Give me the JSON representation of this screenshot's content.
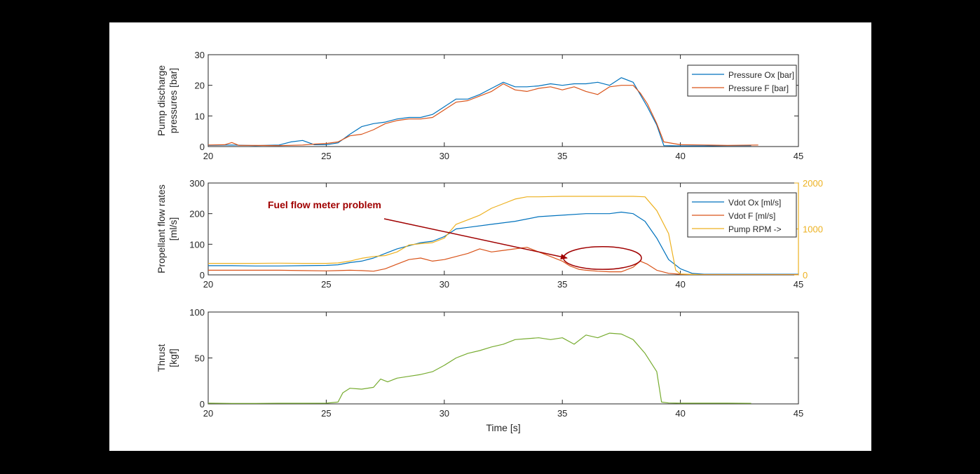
{
  "colors": {
    "page_bg": "#000000",
    "figure_bg": "#ffffff",
    "axis": "#262626",
    "ox": "#0072bd",
    "fuel": "#d95319",
    "rpm": "#edb120",
    "thrust": "#77ac30",
    "annotation": "#a00000"
  },
  "chart_data": [
    {
      "type": "line",
      "ylabel": [
        "Pump discharge",
        "pressures [bar]"
      ],
      "xlabel": "",
      "xlim": [
        20,
        45
      ],
      "ylim": [
        0,
        30
      ],
      "xticks": [
        "20",
        "25",
        "30",
        "35",
        "40",
        "45"
      ],
      "yticks": [
        "0",
        "10",
        "20",
        "30"
      ],
      "legend_position": "top-right",
      "series": [
        {
          "name": "Pressure Ox [bar]",
          "color_key": "ox",
          "points": [
            [
              20,
              0.4
            ],
            [
              21,
              0.5
            ],
            [
              22,
              0.3
            ],
            [
              23,
              0.5
            ],
            [
              23.5,
              1.5
            ],
            [
              24,
              2.0
            ],
            [
              24.5,
              0.6
            ],
            [
              25,
              0.6
            ],
            [
              25.5,
              1.2
            ],
            [
              26,
              4.0
            ],
            [
              26.5,
              6.5
            ],
            [
              27,
              7.5
            ],
            [
              27.5,
              8.0
            ],
            [
              28,
              9.0
            ],
            [
              28.5,
              9.5
            ],
            [
              29,
              9.5
            ],
            [
              29.5,
              10.5
            ],
            [
              30,
              13.0
            ],
            [
              30.5,
              15.5
            ],
            [
              31,
              15.5
            ],
            [
              31.5,
              17.0
            ],
            [
              32,
              19.0
            ],
            [
              32.5,
              21.0
            ],
            [
              33,
              19.5
            ],
            [
              33.5,
              19.5
            ],
            [
              34,
              19.8
            ],
            [
              34.5,
              20.5
            ],
            [
              35,
              20.0
            ],
            [
              35.5,
              20.5
            ],
            [
              36,
              20.5
            ],
            [
              36.5,
              21.0
            ],
            [
              37,
              20.0
            ],
            [
              37.5,
              22.5
            ],
            [
              38,
              21.0
            ],
            [
              38.3,
              17.0
            ],
            [
              38.6,
              13.0
            ],
            [
              39,
              7.0
            ],
            [
              39.3,
              0.3
            ],
            [
              40,
              0.2
            ],
            [
              41,
              0.2
            ],
            [
              42,
              0.3
            ],
            [
              43,
              0.3
            ]
          ]
        },
        {
          "name": "Pressure F [bar]",
          "color_key": "fuel",
          "points": [
            [
              20,
              0.5
            ],
            [
              20.7,
              0.6
            ],
            [
              21,
              1.3
            ],
            [
              21.3,
              0.4
            ],
            [
              22,
              0.4
            ],
            [
              23,
              0.3
            ],
            [
              24,
              0.5
            ],
            [
              24.5,
              0.8
            ],
            [
              25,
              1.0
            ],
            [
              25.5,
              1.5
            ],
            [
              26,
              3.5
            ],
            [
              26.5,
              4.0
            ],
            [
              27,
              5.5
            ],
            [
              27.5,
              7.5
            ],
            [
              28,
              8.5
            ],
            [
              28.5,
              9.0
            ],
            [
              29,
              9.0
            ],
            [
              29.5,
              9.5
            ],
            [
              30,
              12.0
            ],
            [
              30.5,
              14.5
            ],
            [
              31,
              15.0
            ],
            [
              31.5,
              16.5
            ],
            [
              32,
              18.0
            ],
            [
              32.5,
              20.5
            ],
            [
              33,
              18.5
            ],
            [
              33.5,
              18.0
            ],
            [
              34,
              19.0
            ],
            [
              34.5,
              19.5
            ],
            [
              35,
              18.5
            ],
            [
              35.5,
              19.5
            ],
            [
              36,
              18.0
            ],
            [
              36.5,
              17.0
            ],
            [
              37,
              19.5
            ],
            [
              37.5,
              20.0
            ],
            [
              38,
              20.0
            ],
            [
              38.3,
              17.5
            ],
            [
              38.6,
              14.0
            ],
            [
              39,
              7.5
            ],
            [
              39.3,
              1.5
            ],
            [
              40,
              0.6
            ],
            [
              41,
              0.5
            ],
            [
              42,
              0.4
            ],
            [
              43.3,
              0.5
            ]
          ]
        }
      ]
    },
    {
      "type": "line",
      "ylabel": [
        "Propellant flow rates",
        "[ml/s]"
      ],
      "xlabel": "",
      "xlim": [
        20,
        45
      ],
      "ylim": [
        0,
        300
      ],
      "ylim_right": [
        0,
        2000
      ],
      "xticks": [
        "20",
        "25",
        "30",
        "35",
        "40",
        "45"
      ],
      "yticks": [
        "0",
        "100",
        "200",
        "300"
      ],
      "yticks_right": [
        "0",
        "1000",
        "2000"
      ],
      "legend_position": "top-right",
      "annotations": [
        {
          "text": "Fuel flow meter problem",
          "arrow_from": [
            27.5,
            180
          ],
          "arrow_to": [
            35.2,
            55
          ],
          "ellipse_center": [
            36.7,
            55
          ],
          "ellipse_radii": [
            1.65,
            70
          ]
        }
      ],
      "series": [
        {
          "name": "Vdot Ox [ml/s]",
          "color_key": "ox",
          "axis": "left",
          "points": [
            [
              20,
              30
            ],
            [
              21,
              30
            ],
            [
              22,
              29
            ],
            [
              23,
              29
            ],
            [
              24,
              30
            ],
            [
              25,
              31
            ],
            [
              25.5,
              33
            ],
            [
              26,
              40
            ],
            [
              26.5,
              45
            ],
            [
              27,
              55
            ],
            [
              27.5,
              70
            ],
            [
              28,
              85
            ],
            [
              28.5,
              95
            ],
            [
              29,
              105
            ],
            [
              29.5,
              110
            ],
            [
              30,
              125
            ],
            [
              30.5,
              150
            ],
            [
              31,
              155
            ],
            [
              32,
              165
            ],
            [
              33,
              175
            ],
            [
              34,
              190
            ],
            [
              35,
              195
            ],
            [
              36,
              200
            ],
            [
              37,
              200
            ],
            [
              37.5,
              205
            ],
            [
              38,
              200
            ],
            [
              38.5,
              175
            ],
            [
              39,
              120
            ],
            [
              39.5,
              50
            ],
            [
              40,
              20
            ],
            [
              40.5,
              5
            ],
            [
              41,
              2
            ],
            [
              42,
              2
            ],
            [
              43,
              2
            ],
            [
              44,
              2
            ],
            [
              45,
              2
            ]
          ]
        },
        {
          "name": "Vdot F [ml/s]",
          "color_key": "fuel",
          "axis": "left",
          "points": [
            [
              20,
              15
            ],
            [
              21,
              15
            ],
            [
              22,
              15
            ],
            [
              23,
              15
            ],
            [
              24,
              14
            ],
            [
              25,
              13
            ],
            [
              25.5,
              14
            ],
            [
              26,
              15
            ],
            [
              26.5,
              14
            ],
            [
              27,
              12
            ],
            [
              27.5,
              20
            ],
            [
              28,
              35
            ],
            [
              28.5,
              50
            ],
            [
              29,
              55
            ],
            [
              29.5,
              45
            ],
            [
              30,
              50
            ],
            [
              30.5,
              60
            ],
            [
              31,
              70
            ],
            [
              31.5,
              85
            ],
            [
              32,
              75
            ],
            [
              32.5,
              80
            ],
            [
              33,
              85
            ],
            [
              33.5,
              90
            ],
            [
              34,
              75
            ],
            [
              34.5,
              60
            ],
            [
              35,
              45
            ],
            [
              35.3,
              30
            ],
            [
              35.7,
              18
            ],
            [
              36,
              15
            ],
            [
              36.5,
              12
            ],
            [
              37,
              10
            ],
            [
              37.5,
              10
            ],
            [
              38,
              25
            ],
            [
              38.3,
              45
            ],
            [
              38.6,
              35
            ],
            [
              39,
              15
            ],
            [
              39.5,
              5
            ],
            [
              40,
              2
            ],
            [
              41,
              1
            ],
            [
              42,
              1
            ],
            [
              43,
              1
            ],
            [
              44,
              1
            ],
            [
              45,
              1
            ]
          ]
        },
        {
          "name": "Pump RPM ->",
          "color_key": "rpm",
          "axis": "right",
          "points": [
            [
              20,
              250
            ],
            [
              21,
              250
            ],
            [
              22,
              250
            ],
            [
              23,
              255
            ],
            [
              24,
              250
            ],
            [
              25,
              250
            ],
            [
              25.5,
              260
            ],
            [
              26,
              300
            ],
            [
              26.5,
              360
            ],
            [
              27,
              400
            ],
            [
              27.5,
              420
            ],
            [
              28,
              500
            ],
            [
              28.5,
              650
            ],
            [
              29,
              680
            ],
            [
              29.5,
              700
            ],
            [
              30,
              800
            ],
            [
              30.5,
              1100
            ],
            [
              31,
              1200
            ],
            [
              31.5,
              1300
            ],
            [
              32,
              1450
            ],
            [
              32.5,
              1550
            ],
            [
              33,
              1650
            ],
            [
              33.5,
              1700
            ],
            [
              34,
              1700
            ],
            [
              35,
              1710
            ],
            [
              36,
              1710
            ],
            [
              37,
              1710
            ],
            [
              38,
              1710
            ],
            [
              38.5,
              1700
            ],
            [
              39,
              1400
            ],
            [
              39.5,
              900
            ],
            [
              39.8,
              100
            ],
            [
              40,
              20
            ],
            [
              41,
              0
            ],
            [
              42,
              0
            ],
            [
              43,
              0
            ],
            [
              44,
              0
            ],
            [
              45,
              0
            ]
          ]
        }
      ]
    },
    {
      "type": "line",
      "ylabel": [
        "Thrust",
        "[kgf]"
      ],
      "xlabel": "Time [s]",
      "xlim": [
        20,
        45
      ],
      "ylim": [
        0,
        100
      ],
      "xticks": [
        "20",
        "25",
        "30",
        "35",
        "40",
        "45"
      ],
      "yticks": [
        "0",
        "50",
        "100"
      ],
      "series": [
        {
          "name": "",
          "color_key": "thrust",
          "points": [
            [
              20,
              0.8
            ],
            [
              21,
              0.5
            ],
            [
              22,
              0.5
            ],
            [
              23,
              0.7
            ],
            [
              24,
              0.7
            ],
            [
              25,
              0.8
            ],
            [
              25.5,
              2.0
            ],
            [
              25.7,
              12
            ],
            [
              26,
              17
            ],
            [
              26.5,
              16
            ],
            [
              27,
              18
            ],
            [
              27.3,
              27
            ],
            [
              27.6,
              24
            ],
            [
              28,
              28
            ],
            [
              28.5,
              30
            ],
            [
              29,
              32
            ],
            [
              29.5,
              35
            ],
            [
              30,
              42
            ],
            [
              30.5,
              50
            ],
            [
              31,
              55
            ],
            [
              31.5,
              58
            ],
            [
              32,
              62
            ],
            [
              32.5,
              65
            ],
            [
              33,
              70
            ],
            [
              33.5,
              71
            ],
            [
              34,
              72
            ],
            [
              34.5,
              70
            ],
            [
              35,
              72
            ],
            [
              35.5,
              65
            ],
            [
              36,
              75
            ],
            [
              36.5,
              72
            ],
            [
              37,
              77
            ],
            [
              37.5,
              76
            ],
            [
              38,
              70
            ],
            [
              38.5,
              55
            ],
            [
              39,
              35
            ],
            [
              39.2,
              2
            ],
            [
              39.5,
              1
            ],
            [
              40,
              0.8
            ],
            [
              41,
              0.8
            ],
            [
              42,
              0.8
            ],
            [
              43,
              0.6
            ]
          ]
        }
      ]
    }
  ]
}
